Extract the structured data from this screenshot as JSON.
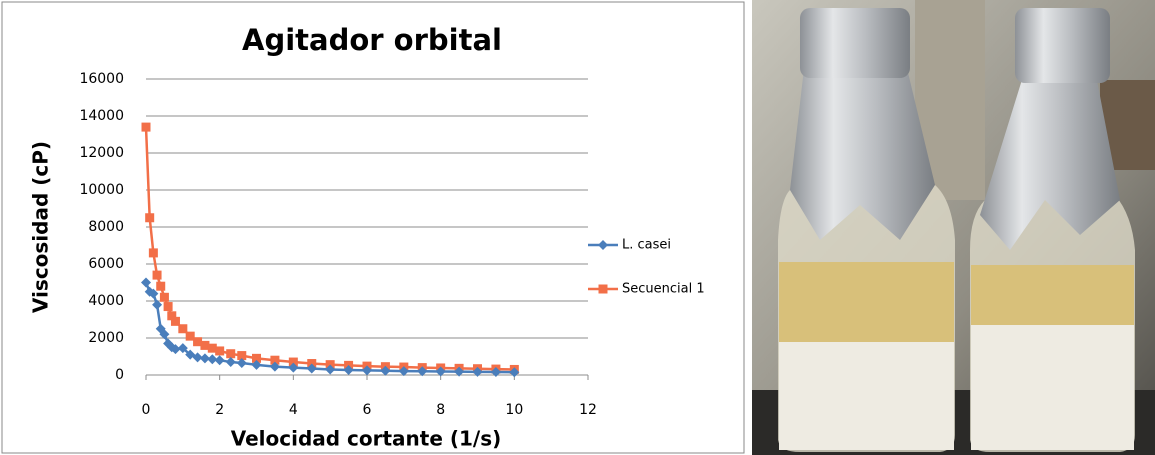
{
  "chart_data": {
    "type": "line",
    "title": "Agitador orbital",
    "x_label": "Velocidad cortante (1/s)",
    "y_label": "Viscosidad (cP)",
    "x": [
      0,
      0.1,
      0.2,
      0.3,
      0.4,
      0.5,
      0.6,
      0.7,
      0.8,
      1.0,
      1.2,
      1.4,
      1.6,
      1.8,
      2.0,
      2.3,
      2.6,
      3.0,
      3.5,
      4.0,
      4.5,
      5.0,
      5.5,
      6.0,
      6.5,
      7.0,
      7.5,
      8.0,
      8.5,
      9.0,
      9.5,
      10.0
    ],
    "series": [
      {
        "name": "L. casei",
        "color": "#4a7ebb",
        "marker": "diamond",
        "values": [
          5000,
          4500,
          4400,
          3800,
          2500,
          2200,
          1700,
          1500,
          1400,
          1450,
          1100,
          950,
          900,
          850,
          800,
          700,
          650,
          550,
          450,
          400,
          350,
          300,
          270,
          250,
          230,
          210,
          200,
          190,
          180,
          170,
          160,
          150
        ]
      },
      {
        "name": "Secuencial 1",
        "color": "#f26f48",
        "marker": "square",
        "values": [
          13400,
          8500,
          6600,
          5400,
          4800,
          4200,
          3700,
          3200,
          2900,
          2500,
          2100,
          1800,
          1600,
          1450,
          1300,
          1150,
          1050,
          900,
          800,
          700,
          620,
          560,
          520,
          480,
          450,
          430,
          400,
          380,
          360,
          340,
          320,
          300
        ]
      }
    ],
    "xlim": [
      0,
      12
    ],
    "xticks": [
      0,
      2,
      4,
      6,
      8,
      10,
      12
    ],
    "ylim": [
      0,
      16000
    ],
    "yticks": [
      0,
      2000,
      4000,
      6000,
      8000,
      10000,
      12000,
      14000,
      16000
    ],
    "grid": true,
    "legend": "right"
  }
}
